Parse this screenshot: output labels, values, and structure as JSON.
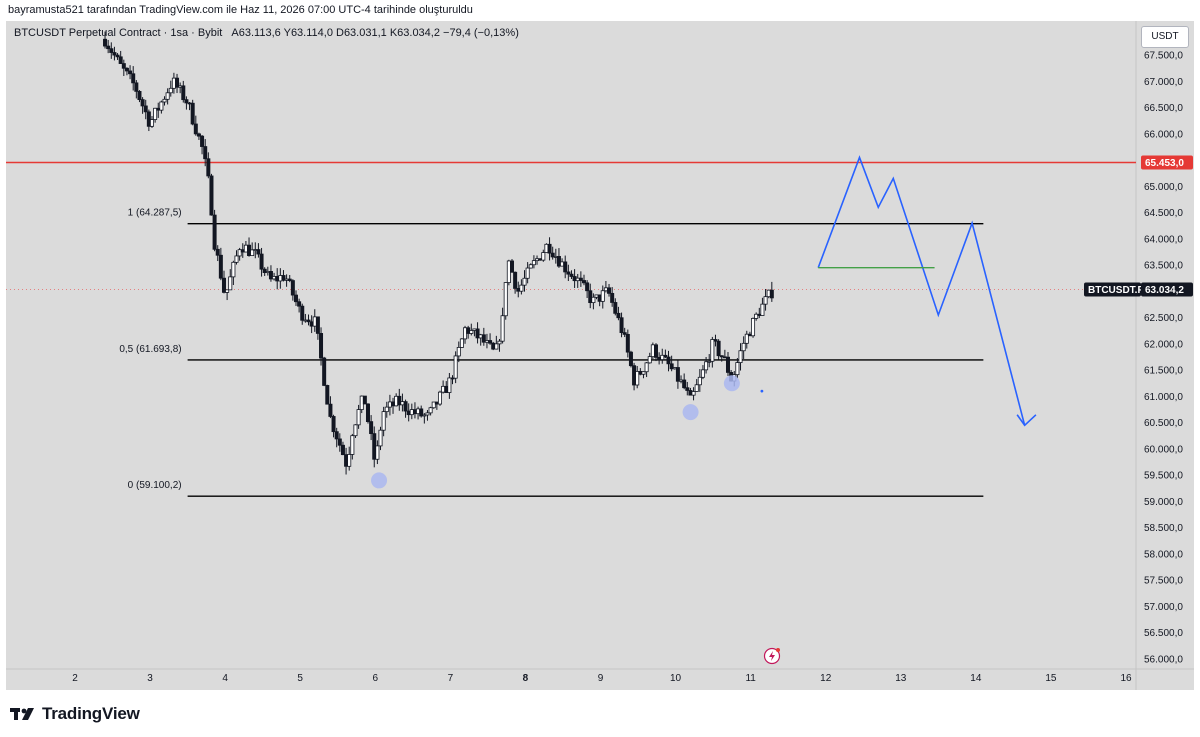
{
  "header": {
    "credit": "bayramusta521 tarafından TradingView.com ile Haz 11, 2026 07:00 UTC-4 tarihinde oluşturuldu"
  },
  "legend": {
    "symbol": "BTCUSDT Perpetual Contract",
    "interval": "1sa",
    "exchange": "Bybit",
    "ohlc": "A63.113,6  Y63.114,0  D63.031,1  K63.034,2  −79,4 (−0,13%)"
  },
  "currency": "USDT",
  "footer": {
    "brand": "TradingView"
  },
  "colors": {
    "background": "#dbdbdb",
    "candle_body": "#131722",
    "resistance": "#e53935",
    "fib_lines": "#000000",
    "projection": "#2962ff",
    "target": "#43a047",
    "highlight": "#aab7f0",
    "price_tag": "#131722"
  },
  "chart_data": {
    "type": "candlestick",
    "y_scale": {
      "min": 55900,
      "max": 68000
    },
    "y_ticks": [
      {
        "v": 56000,
        "t": "56.000,0"
      },
      {
        "v": 56500,
        "t": "56.500,0"
      },
      {
        "v": 57000,
        "t": "57.000,0"
      },
      {
        "v": 57500,
        "t": "57.500,0"
      },
      {
        "v": 58000,
        "t": "58.000,0"
      },
      {
        "v": 58500,
        "t": "58.500,0"
      },
      {
        "v": 59000,
        "t": "59.000,0"
      },
      {
        "v": 59500,
        "t": "59.500,0"
      },
      {
        "v": 60000,
        "t": "60.000,0"
      },
      {
        "v": 60500,
        "t": "60.500,0"
      },
      {
        "v": 61000,
        "t": "61.000,0"
      },
      {
        "v": 61500,
        "t": "61.500,0"
      },
      {
        "v": 62000,
        "t": "62.000,0"
      },
      {
        "v": 62500,
        "t": "62.500,0"
      },
      {
        "v": 63000,
        "t": "63.000,0"
      },
      {
        "v": 63500,
        "t": "63.500,0"
      },
      {
        "v": 64000,
        "t": "64.000,0"
      },
      {
        "v": 64500,
        "t": "64.500,0"
      },
      {
        "v": 65000,
        "t": "65.000,0"
      },
      {
        "v": 65500,
        "t": "65.500,0"
      },
      {
        "v": 66000,
        "t": "66.000,0"
      },
      {
        "v": 66500,
        "t": "66.500,0"
      },
      {
        "v": 67000,
        "t": "67.000,0"
      },
      {
        "v": 67500,
        "t": "67.500,0"
      }
    ],
    "x_scale": {
      "min": 1.1,
      "max": 16.5
    },
    "x_ticks": [
      {
        "v": 2,
        "t": "2"
      },
      {
        "v": 3,
        "t": "3"
      },
      {
        "v": 4,
        "t": "4"
      },
      {
        "v": 5,
        "t": "5"
      },
      {
        "v": 6,
        "t": "6"
      },
      {
        "v": 7,
        "t": "7"
      },
      {
        "v": 8,
        "t": "8"
      },
      {
        "v": 9,
        "t": "9"
      },
      {
        "v": 10,
        "t": "10"
      },
      {
        "v": 11,
        "t": "11"
      },
      {
        "v": 12,
        "t": "12"
      },
      {
        "v": 13,
        "t": "13"
      },
      {
        "v": 14,
        "t": "14"
      },
      {
        "v": 15,
        "t": "15"
      },
      {
        "v": 16,
        "t": "16"
      }
    ],
    "price_path": [
      [
        2.4,
        67800
      ],
      [
        2.6,
        67300
      ],
      [
        2.8,
        66900
      ],
      [
        3.0,
        66200
      ],
      [
        3.3,
        67000
      ],
      [
        3.5,
        66600
      ],
      [
        3.7,
        65700
      ],
      [
        3.8,
        64900
      ],
      [
        3.85,
        64000
      ],
      [
        4.0,
        62900
      ],
      [
        4.2,
        63900
      ],
      [
        4.4,
        63700
      ],
      [
        4.6,
        63200
      ],
      [
        4.8,
        63300
      ],
      [
        5.0,
        62600
      ],
      [
        5.2,
        62400
      ],
      [
        5.4,
        60600
      ],
      [
        5.55,
        60000
      ],
      [
        5.62,
        59700
      ],
      [
        5.7,
        60400
      ],
      [
        5.85,
        61000
      ],
      [
        6.0,
        59700
      ],
      [
        6.1,
        60700
      ],
      [
        6.3,
        60900
      ],
      [
        6.5,
        60700
      ],
      [
        6.7,
        60600
      ],
      [
        7.0,
        61300
      ],
      [
        7.2,
        62300
      ],
      [
        7.4,
        62100
      ],
      [
        7.6,
        61800
      ],
      [
        7.72,
        62600
      ],
      [
        7.75,
        63700
      ],
      [
        7.9,
        63000
      ],
      [
        8.1,
        63500
      ],
      [
        8.3,
        63900
      ],
      [
        8.5,
        63500
      ],
      [
        8.7,
        63200
      ],
      [
        8.9,
        62800
      ],
      [
        9.1,
        63000
      ],
      [
        9.3,
        62200
      ],
      [
        9.45,
        61300
      ],
      [
        9.55,
        61500
      ],
      [
        9.7,
        61900
      ],
      [
        9.9,
        61600
      ],
      [
        10.1,
        61200
      ],
      [
        10.2,
        60900
      ],
      [
        10.35,
        61400
      ],
      [
        10.5,
        62000
      ],
      [
        10.65,
        61700
      ],
      [
        10.75,
        61300
      ],
      [
        10.9,
        62000
      ],
      [
        11.1,
        62600
      ],
      [
        11.3,
        63034
      ]
    ],
    "horizontal_levels": [
      {
        "name": "resistance",
        "value": 65453.0,
        "label": "65.453,0",
        "x_from": 1.1,
        "x_to": 16.5,
        "color": "#e53935"
      },
      {
        "name": "fib-1",
        "value": 64287.5,
        "label": "1 (64.287,5)",
        "x_from": 3.5,
        "x_to": 14.1
      },
      {
        "name": "fib-0.5",
        "value": 61693.8,
        "label": "0,5 (61.693,8)",
        "x_from": 3.5,
        "x_to": 14.1
      },
      {
        "name": "fib-0",
        "value": 59100.2,
        "label": "0 (59.100,2)",
        "x_from": 3.5,
        "x_to": 14.1
      }
    ],
    "target_line": {
      "value": 63450,
      "x_from": 11.9,
      "x_to": 13.45
    },
    "projection_path": [
      [
        11.9,
        63450
      ],
      [
        12.45,
        65550
      ],
      [
        12.7,
        64600
      ],
      [
        12.9,
        65150
      ],
      [
        13.5,
        62550
      ],
      [
        13.95,
        64300
      ],
      [
        14.65,
        60450
      ]
    ],
    "projection_arrowhead": [
      [
        14.55,
        60650
      ],
      [
        14.65,
        60450
      ],
      [
        14.8,
        60650
      ]
    ],
    "highlight_markers": [
      {
        "x": 6.05,
        "y": 59400
      },
      {
        "x": 10.2,
        "y": 60700
      },
      {
        "x": 10.75,
        "y": 61250
      }
    ],
    "small_marker": {
      "x": 11.15,
      "y": 61100
    },
    "current_price": {
      "value": 63034.2,
      "label": "63.034,2",
      "symbol": "BTCUSDT.P"
    }
  }
}
